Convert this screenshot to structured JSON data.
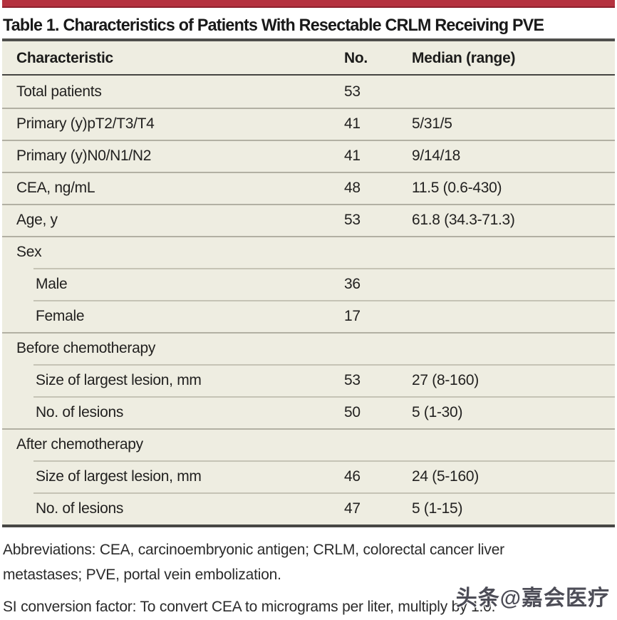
{
  "page": {
    "title": "Table 1. Characteristics of Patients With Resectable CRLM Receiving PVE"
  },
  "colors": {
    "accent": "#b5323f",
    "table_bg": "#eeede1"
  },
  "table": {
    "headers": {
      "characteristic": "Characteristic",
      "no": "No.",
      "median": "Median (range)"
    },
    "rows": [
      {
        "label": "Total patients",
        "no": "53",
        "median": "",
        "indent": false,
        "sep": "none"
      },
      {
        "label": "Primary (y)pT2/T3/T4",
        "no": "41",
        "median": "5/31/5",
        "indent": false,
        "sep": "full"
      },
      {
        "label": "Primary (y)N0/N1/N2",
        "no": "41",
        "median": "9/14/18",
        "indent": false,
        "sep": "full"
      },
      {
        "label": "CEA, ng/mL",
        "no": "48",
        "median": "11.5 (0.6-430)",
        "indent": false,
        "sep": "full"
      },
      {
        "label": "Age, y",
        "no": "53",
        "median": "61.8 (34.3-71.3)",
        "indent": false,
        "sep": "full"
      },
      {
        "label": "Sex",
        "no": "",
        "median": "",
        "indent": false,
        "sep": "full"
      },
      {
        "label": "Male",
        "no": "36",
        "median": "",
        "indent": true,
        "sep": "indent"
      },
      {
        "label": "Female",
        "no": "17",
        "median": "",
        "indent": true,
        "sep": "indent"
      },
      {
        "label": "Before chemotherapy",
        "no": "",
        "median": "",
        "indent": false,
        "sep": "full"
      },
      {
        "label": "Size of largest lesion, mm",
        "no": "53",
        "median": "27 (8-160)",
        "indent": true,
        "sep": "indent"
      },
      {
        "label": "No. of lesions",
        "no": "50",
        "median": "5 (1-30)",
        "indent": true,
        "sep": "indent"
      },
      {
        "label": "After chemotherapy",
        "no": "",
        "median": "",
        "indent": false,
        "sep": "full"
      },
      {
        "label": "Size of largest lesion, mm",
        "no": "46",
        "median": "24 (5-160)",
        "indent": true,
        "sep": "indent"
      },
      {
        "label": "No. of lesions",
        "no": "47",
        "median": "5 (1-15)",
        "indent": true,
        "sep": "indent"
      }
    ]
  },
  "footnotes": {
    "abbreviations": "Abbreviations: CEA, carcinoembryonic antigen; CRLM, colorectal cancer liver metastases; PVE, portal vein embolization.",
    "si_conversion": "SI conversion factor: To convert CEA to micrograms per liter, multiply by 1.0."
  },
  "watermark": {
    "text": "头条@嘉会医疗"
  }
}
